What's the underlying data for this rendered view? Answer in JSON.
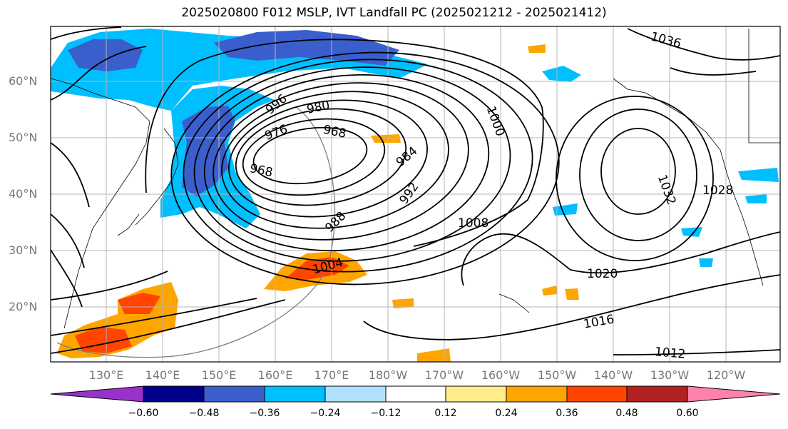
{
  "title": "2025020800 F012 MSLP, IVT Landfall PC (2025021212 - 2025021412)",
  "lat_labels": [
    "60°N",
    "50°N",
    "40°N",
    "30°N",
    "20°N"
  ],
  "lon_labels": [
    "130°E",
    "140°E",
    "150°E",
    "160°E",
    "170°E",
    "180°W",
    "170°W",
    "160°W",
    "150°W",
    "140°W",
    "130°W",
    "120°W"
  ],
  "contour_labels": [
    "1036",
    "1032",
    "1028",
    "1020",
    "1016",
    "1012",
    "1008",
    "1004",
    "992",
    "988",
    "984",
    "980",
    "976",
    "968",
    "968",
    "996",
    "1000"
  ],
  "colorbar": {
    "ticks": [
      "−0.60",
      "−0.48",
      "−0.36",
      "−0.24",
      "−0.12",
      "0.12",
      "0.24",
      "0.36",
      "0.48",
      "0.60"
    ],
    "colors": [
      "#9932cc",
      "#00008b",
      "#3a5fcd",
      "#00bfff",
      "#b0e2ff",
      "#ffffff",
      "#ffec8b",
      "#ffa500",
      "#ff4500",
      "#b22222",
      "#ff82ab"
    ]
  }
}
